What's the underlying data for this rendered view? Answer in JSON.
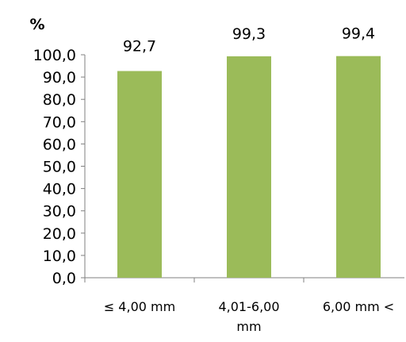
{
  "chart_data": {
    "type": "bar",
    "ylabel": "%",
    "categories": [
      [
        "≤ 4,00 mm"
      ],
      [
        "4,01-6,00",
        "mm"
      ],
      [
        "6,00 mm <"
      ]
    ],
    "values": [
      92.7,
      99.3,
      99.4
    ],
    "data_labels": [
      "92,7",
      "99,3",
      "99,4"
    ],
    "ylim": [
      0,
      100
    ],
    "yticks": [
      "0,0",
      "10,0",
      "20,0",
      "30,0",
      "40,0",
      "50,0",
      "60,0",
      "70,0",
      "80,0",
      "90,0",
      "100,0"
    ],
    "bar_color": "#9bbb59",
    "grid": false,
    "legend": "none"
  }
}
